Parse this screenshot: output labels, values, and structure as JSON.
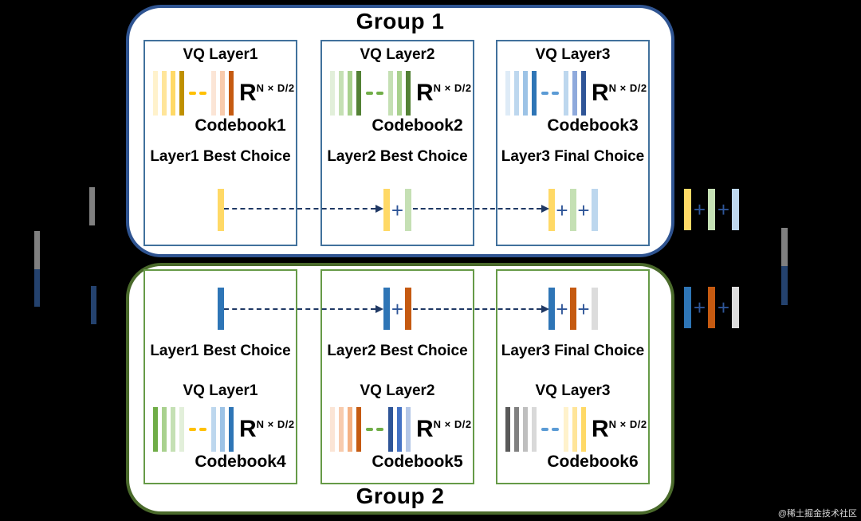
{
  "misc": {
    "plus_sign": "+",
    "plus_color": "#2E5597",
    "arrow_color": "#1F3864",
    "background_color": "#000000"
  },
  "watermark": "@稀土掘金技术社区",
  "input": {
    "combined_bar": {
      "top_color": "#808080",
      "bottom_color": "#24426E"
    },
    "split_top_color": "#808080",
    "split_bottom_color": "#24426E"
  },
  "group1": {
    "title": "Group 1",
    "accent": "#2F5491",
    "box_accent": "#41719C",
    "boxes": [
      {
        "layer_label": "VQ Layer1",
        "matrix_base": "R",
        "matrix_sup": "N × D/2",
        "codebook_label": "Codebook1",
        "choice_label": "Layer1 Best Choice",
        "codebook_bars_left": [
          "#FFF2CC",
          "#FFE599",
          "#FFD966",
          "#BF9000"
        ],
        "codebook_dash_color": "#FFC000",
        "codebook_bars_right": [
          "#FBE5D6",
          "#F8CBAD",
          "#C55A11"
        ],
        "choice_bars": [
          "#FFD966"
        ]
      },
      {
        "layer_label": "VQ Layer2",
        "matrix_base": "R",
        "matrix_sup": "N × D/2",
        "codebook_label": "Codebook2",
        "choice_label": "Layer2 Best Choice",
        "codebook_bars_left": [
          "#E2EFDA",
          "#C5E0B4",
          "#A9D18E",
          "#538135"
        ],
        "codebook_dash_color": "#70AD47",
        "codebook_bars_right": [
          "#C5E0B4",
          "#A9D18E",
          "#538135"
        ],
        "choice_bars": [
          "#FFD966",
          "#C5E0B4"
        ]
      },
      {
        "layer_label": "VQ Layer3",
        "matrix_base": "R",
        "matrix_sup": "N × D/2",
        "codebook_label": "Codebook3",
        "choice_label": "Layer3 Final Choice",
        "codebook_bars_left": [
          "#DEEBF7",
          "#BDD7EE",
          "#9DC3E6",
          "#2E75B6"
        ],
        "codebook_dash_color": "#5B9BD5",
        "codebook_bars_right": [
          "#BDD7EE",
          "#8FAADC",
          "#2F5597"
        ],
        "choice_bars": [
          "#FFD966",
          "#C5E0B4",
          "#BDD7EE"
        ]
      }
    ]
  },
  "group2": {
    "title": "Group 2",
    "accent": "#4A6A2B",
    "box_accent": "#669A47",
    "boxes": [
      {
        "layer_label": "VQ Layer1",
        "matrix_base": "R",
        "matrix_sup": "N × D/2",
        "codebook_label": "Codebook4",
        "choice_label": "Layer1 Best Choice",
        "codebook_bars_left": [
          "#70AD47",
          "#A9D18E",
          "#C5E0B4",
          "#E2EFDA"
        ],
        "codebook_dash_color": "#FFC000",
        "codebook_bars_right": [
          "#BDD7EE",
          "#9DC3E6",
          "#2E75B6"
        ],
        "choice_bars": [
          "#2E75B6"
        ]
      },
      {
        "layer_label": "VQ Layer2",
        "matrix_base": "R",
        "matrix_sup": "N × D/2",
        "codebook_label": "Codebook5",
        "choice_label": "Layer2 Best Choice",
        "codebook_bars_left": [
          "#FBE5D6",
          "#F8CBAD",
          "#F4B183",
          "#C55A11"
        ],
        "codebook_dash_color": "#70AD47",
        "codebook_bars_right": [
          "#2F5597",
          "#4472C4",
          "#B4C7E7"
        ],
        "choice_bars": [
          "#2E75B6",
          "#C55A11"
        ]
      },
      {
        "layer_label": "VQ Layer3",
        "matrix_base": "R",
        "matrix_sup": "N × D/2",
        "codebook_label": "Codebook6",
        "choice_label": "Layer3 Final Choice",
        "codebook_bars_left": [
          "#595959",
          "#808080",
          "#BFBFBF",
          "#D9D9D9"
        ],
        "codebook_dash_color": "#5B9BD5",
        "codebook_bars_right": [
          "#FFF2CC",
          "#FFE599",
          "#FFD966"
        ],
        "choice_bars": [
          "#2E75B6",
          "#C55A11",
          "#DCDCDC"
        ]
      }
    ]
  },
  "output": {
    "group1_bars": [
      "#FFD966",
      "#C5E0B4",
      "#BDD7EE"
    ],
    "group2_bars": [
      "#2E75B6",
      "#C55A11",
      "#DCDCDC"
    ],
    "combined_bar": {
      "top_color": "#808080",
      "bottom_color": "#24426E"
    }
  }
}
